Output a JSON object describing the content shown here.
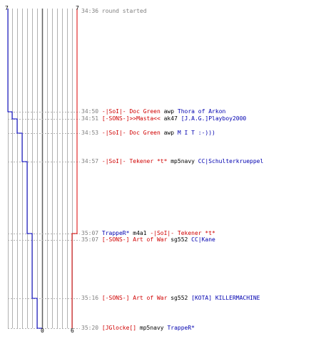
{
  "scores": {
    "blue_start": "7",
    "red_start": "7",
    "blue_end": "0",
    "red_end": "6",
    "colors": {
      "blue": "#0000cc",
      "red": "#dd0000",
      "grid": "#b0b0b0"
    }
  },
  "events": [
    {
      "time": "34:36",
      "parts": [
        {
          "text": "round started",
          "color": "grey"
        }
      ]
    },
    {
      "time": "34:50",
      "parts": [
        {
          "text": "-|SoI|- Doc Green",
          "color": "red"
        },
        {
          "text": " awp ",
          "color": "black"
        },
        {
          "text": "Thora of Arkon",
          "color": "blue"
        }
      ]
    },
    {
      "time": "34:51",
      "parts": [
        {
          "text": "[-SONS-]>>Masta<<",
          "color": "red"
        },
        {
          "text": " ak47 ",
          "color": "black"
        },
        {
          "text": "[J.A.G.]Playboy2000",
          "color": "blue"
        }
      ]
    },
    {
      "time": "34:53",
      "parts": [
        {
          "text": "-|SoI|- Doc Green",
          "color": "red"
        },
        {
          "text": " awp ",
          "color": "black"
        },
        {
          "text": "M I T   :-)))",
          "color": "blue"
        }
      ]
    },
    {
      "time": "34:57",
      "parts": [
        {
          "text": "-|SoI|- Tekener *t*",
          "color": "red"
        },
        {
          "text": " mp5navy ",
          "color": "black"
        },
        {
          "text": "CC|Schulterkrueppel",
          "color": "blue"
        }
      ]
    },
    {
      "time": "35:07",
      "parts": [
        {
          "text": "TrappeR*",
          "color": "blue"
        },
        {
          "text": " m4a1 ",
          "color": "black"
        },
        {
          "text": "-|SoI|- Tekener *t*",
          "color": "red"
        }
      ]
    },
    {
      "time": "35:07",
      "parts": [
        {
          "text": "[-SONS-] Art of War",
          "color": "red"
        },
        {
          "text": " sg552 ",
          "color": "black"
        },
        {
          "text": "CC|Kane",
          "color": "blue"
        }
      ]
    },
    {
      "time": "35:16",
      "parts": [
        {
          "text": "[-SONS-] Art of War",
          "color": "red"
        },
        {
          "text": " sg552 ",
          "color": "black"
        },
        {
          "text": "[KOTA] KILLERMACHINE",
          "color": "blue"
        }
      ]
    },
    {
      "time": "35:20",
      "parts": [
        {
          "text": "[JGlocke[]",
          "color": "red"
        },
        {
          "text": " mp5navy ",
          "color": "black"
        },
        {
          "text": "TrappeR*",
          "color": "blue"
        }
      ]
    }
  ]
}
